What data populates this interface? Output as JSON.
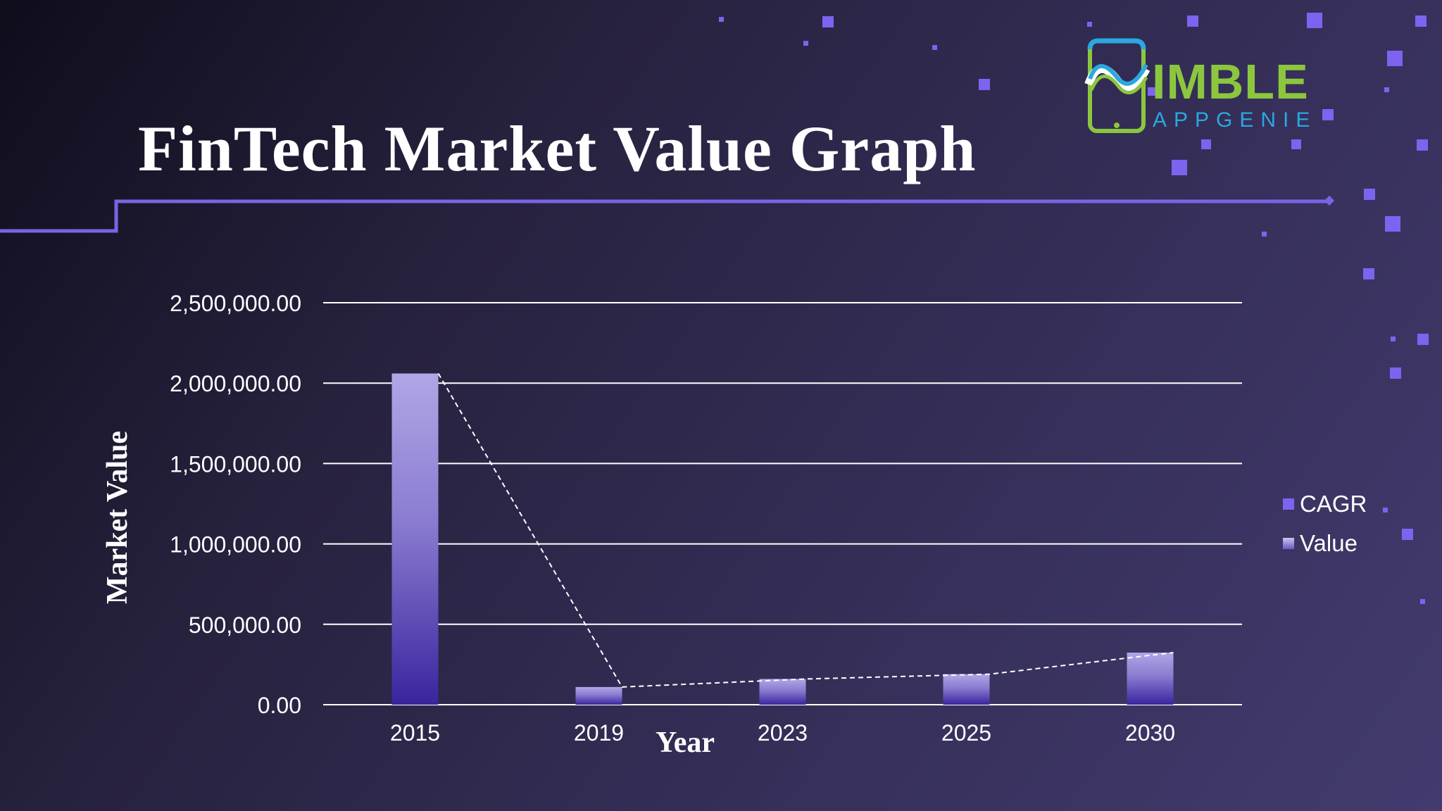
{
  "slide": {
    "title": "FinTech Market Value Graph",
    "logo_word": "IMBLE",
    "logo_sub": "APPGENIE"
  },
  "colors": {
    "accent_line": "#7b63e6",
    "square": "#7d63f0",
    "bar_top": "#b1a6e6",
    "bar_bottom": "#3a249e",
    "grid": "#ffffff",
    "logo_green": "#8cc63f",
    "logo_blue": "#2aa8e0"
  },
  "chart_data": {
    "type": "bar",
    "title": "FinTech Market Value Graph",
    "xlabel": "Year",
    "ylabel": "Market Value",
    "categories": [
      "2015",
      "2019",
      "2023",
      "2025",
      "2030"
    ],
    "series": [
      {
        "name": "CAGR",
        "values": [
          null,
          null,
          null,
          null,
          null
        ],
        "style": "marker"
      },
      {
        "name": "Value",
        "values": [
          2060000,
          110000,
          160000,
          190000,
          324000
        ],
        "style": "bar"
      }
    ],
    "trendline": {
      "style": "dashed",
      "follows": "Value"
    },
    "ylim": [
      0,
      2500000
    ],
    "yticks": [
      0,
      500000,
      1000000,
      1500000,
      2000000,
      2500000
    ],
    "ytick_labels": [
      "0.00",
      "500,000.00",
      "1,000,000.00",
      "1,500,000.00",
      "2,000,000.00",
      "2,500,000.00"
    ],
    "grid": true,
    "legend": {
      "position": "right",
      "entries": [
        "CAGR",
        "Value"
      ]
    }
  }
}
